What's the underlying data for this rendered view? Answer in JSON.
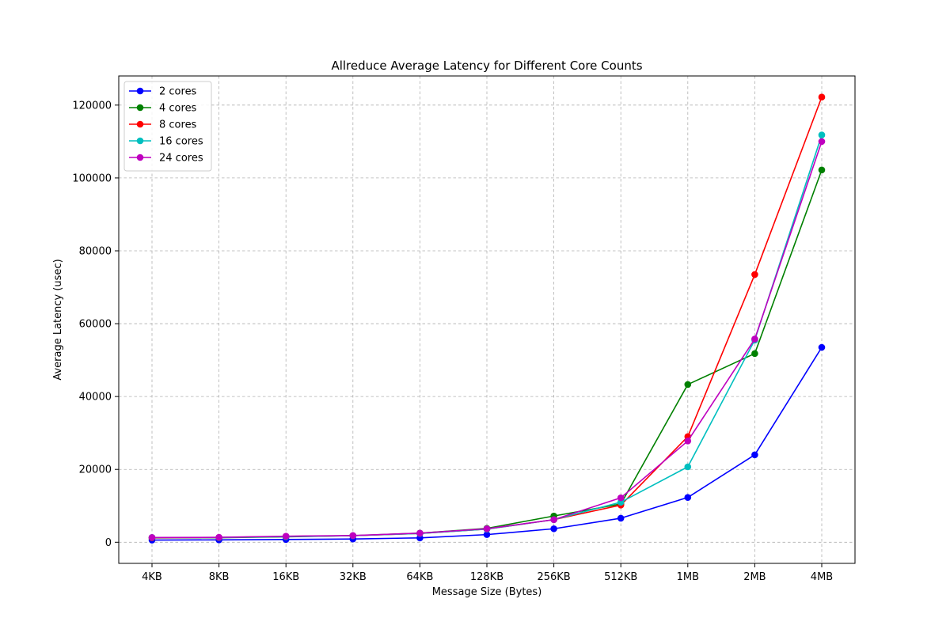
{
  "chart_data": {
    "type": "line",
    "title": "Allreduce Average Latency for Different Core Counts",
    "xlabel": "Message Size (Bytes)",
    "ylabel": "Average Latency (usec)",
    "categories": [
      "4KB",
      "8KB",
      "16KB",
      "32KB",
      "64KB",
      "128KB",
      "256KB",
      "512KB",
      "1MB",
      "2MB",
      "4MB"
    ],
    "yticks": [
      0,
      20000,
      40000,
      60000,
      80000,
      100000,
      120000
    ],
    "ylim": [
      -5800,
      128000
    ],
    "grid": true,
    "legend_position": "top-left",
    "series": [
      {
        "name": "2 cores",
        "color": "#0000ff",
        "values": [
          600,
          650,
          750,
          900,
          1200,
          2100,
          3700,
          6600,
          12300,
          24000,
          53500
        ]
      },
      {
        "name": "4 cores",
        "color": "#008000",
        "values": [
          1200,
          1250,
          1500,
          1800,
          2500,
          3800,
          7200,
          10500,
          43300,
          51800,
          102200
        ]
      },
      {
        "name": "8 cores",
        "color": "#ff0000",
        "values": [
          1250,
          1300,
          1600,
          1800,
          2400,
          3600,
          6200,
          10200,
          29000,
          73500,
          122200
        ]
      },
      {
        "name": "16 cores",
        "color": "#00bfbf",
        "values": [
          1300,
          1300,
          1550,
          1800,
          2400,
          3600,
          6200,
          11000,
          20700,
          55500,
          111800
        ]
      },
      {
        "name": "24 cores",
        "color": "#bf00bf",
        "values": [
          1300,
          1350,
          1650,
          1850,
          2500,
          3700,
          6200,
          12200,
          27800,
          55800,
          110000
        ]
      }
    ]
  }
}
